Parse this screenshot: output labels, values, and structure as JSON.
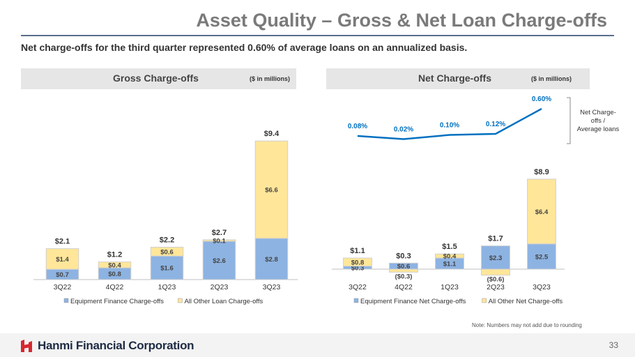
{
  "header": {
    "title": "Asset Quality – Gross & Net Loan Charge-offs",
    "subtitle": "Net charge-offs for the third quarter represented 0.60% of average loans on an annualized basis."
  },
  "footer": {
    "company": "Hanmi Financial Corporation",
    "page_number": "33",
    "note": "Note: Numbers may not add due to rounding"
  },
  "chart_data": [
    {
      "type": "bar",
      "stacked": true,
      "title": "Gross Charge-offs",
      "units": "($ in millions)",
      "categories": [
        "3Q22",
        "4Q22",
        "1Q23",
        "2Q23",
        "3Q23"
      ],
      "series": [
        {
          "name": "Equipment Finance Charge-offs",
          "color": "#8db3e2",
          "values": [
            0.7,
            0.8,
            1.6,
            2.6,
            2.8
          ],
          "labels": [
            "$0.7",
            "$0.8",
            "$1.6",
            "$2.6",
            "$2.8"
          ]
        },
        {
          "name": "All Other Loan Charge-offs",
          "color": "#ffe699",
          "values": [
            1.4,
            0.4,
            0.6,
            0.1,
            6.6
          ],
          "labels": [
            "$1.4",
            "$0.4",
            "$0.6",
            "$0.1",
            "$6.6"
          ]
        }
      ],
      "totals": [
        "$2.1",
        "$1.2",
        "$2.2",
        "$2.7",
        "$9.4"
      ],
      "ylim": [
        0,
        10
      ]
    },
    {
      "type": "bar",
      "stacked": true,
      "title": "Net Charge-offs",
      "units": "($ in millions)",
      "categories": [
        "3Q22",
        "4Q22",
        "1Q23",
        "2Q23",
        "3Q23"
      ],
      "series": [
        {
          "name": "Equipment Finance Net Charge-offs",
          "color": "#8db3e2",
          "values": [
            0.3,
            0.6,
            1.1,
            2.3,
            2.5
          ],
          "labels": [
            "$0.3",
            "$0.6",
            "$1.1",
            "$2.3",
            "$2.5"
          ]
        },
        {
          "name": "All Other Net Charge-offs",
          "color": "#ffe699",
          "values": [
            0.8,
            -0.3,
            0.4,
            -0.6,
            6.4
          ],
          "labels": [
            "$0.8",
            "($0.3)",
            "$0.4",
            "($0.6)",
            "$6.4"
          ]
        }
      ],
      "totals": [
        "$1.1",
        "$0.3",
        "$1.5",
        "$1.7",
        "$8.9"
      ],
      "ylim": [
        -1,
        10
      ],
      "line": {
        "name": "Net Charge-offs / Average loans",
        "legend_label": "Net Charge-offs / Average loans",
        "color": "#0070c0",
        "values": [
          0.08,
          0.02,
          0.1,
          0.12,
          0.6
        ],
        "labels": [
          "0.08%",
          "0.02%",
          "0.10%",
          "0.12%",
          "0.60%"
        ]
      }
    }
  ]
}
